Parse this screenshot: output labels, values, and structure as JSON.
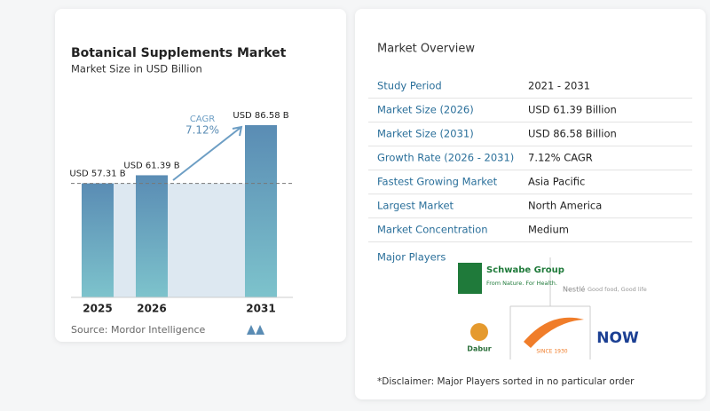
{
  "chart_data": {
    "type": "bar",
    "title": "Botanical Supplements Market",
    "subtitle": "Market Size in USD Billion",
    "categories": [
      "2025",
      "2026",
      "2031"
    ],
    "values": [
      57.31,
      61.39,
      86.58
    ],
    "value_labels": [
      "USD 57.31 B",
      "USD 61.39 B",
      "USD 86.58 B"
    ],
    "annotation": {
      "label": "CAGR",
      "value": "7.12%"
    },
    "source": "Source: Mordor Intelligence",
    "color": [
      "#5a8cb4",
      "#7dc3cc"
    ]
  },
  "overview": {
    "title": "Market Overview",
    "rows": [
      [
        "Study Period",
        "2021 - 2031"
      ],
      [
        "Market Size (2026)",
        "USD 61.39 Billion"
      ],
      [
        "Market Size (2031)",
        "USD 86.58 Billion"
      ],
      [
        "Growth Rate (2026 - 2031)",
        "7.12% CAGR"
      ],
      [
        "Fastest Growing Market",
        "Asia Pacific"
      ],
      [
        "Largest Market",
        "North America"
      ],
      [
        "Market Concentration",
        "Medium"
      ]
    ],
    "players_title": "Major Players",
    "logos": {
      "schwabe": "Schwabe Group",
      "schwabe_tag": "From Nature. For Health.",
      "nestle": "Nestlé",
      "nestle_tag": "Good food, Good life",
      "dabur": "Dabur",
      "since": "SINCE 1930",
      "now": "NOW"
    },
    "disclaimer": "*Disclaimer: Major Players sorted in no particular order"
  }
}
